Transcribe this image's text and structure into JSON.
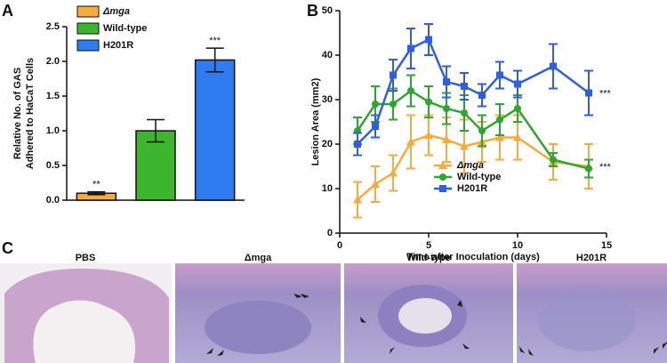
{
  "panels": [
    "A",
    "B",
    "C"
  ],
  "chart_data": [
    {
      "type": "bar",
      "ylabel": [
        "Relative No. of GAS",
        "Adhered to HaCaT Cells"
      ],
      "categories": [
        "Δmga",
        "Wild-type",
        "H201R"
      ],
      "values": [
        0.1,
        1.0,
        2.02
      ],
      "errors": [
        0.02,
        0.16,
        0.17
      ],
      "value_annotations": [
        "**",
        null,
        "***"
      ],
      "colors": [
        "#f6ac3c",
        "#3db52f",
        "#2f7cf2"
      ],
      "ylim": [
        0,
        2.5
      ],
      "yticks": [
        {
          "value": 0,
          "label": "0.0"
        },
        0.5,
        {
          "value": 1,
          "label": "1.0"
        },
        1.5,
        {
          "value": 2,
          "label": "2.0"
        },
        2.5
      ],
      "legend": "upper left"
    },
    {
      "type": "line",
      "xlabel": "Time after Inoculation (days)",
      "ylabel": "Lesion Area (mm2)",
      "x": [
        1,
        2,
        3,
        4,
        5,
        6,
        7,
        8,
        9,
        10,
        12,
        14
      ],
      "series": [
        {
          "name": "Δmga",
          "color": "#f6ac3c",
          "marker": "triangle",
          "annotation": "***",
          "values": [
            7.5,
            11,
            13.5,
            20.5,
            22,
            21,
            19.5,
            20.5,
            21.5,
            21.5,
            16,
            15
          ],
          "errors": [
            4,
            4,
            4,
            6,
            4.5,
            5,
            6,
            4.5,
            5,
            5,
            4,
            5
          ]
        },
        {
          "name": "Wild-type",
          "color": "#2fa62f",
          "marker": "circle",
          "values": [
            23,
            29,
            29,
            32,
            29.5,
            28,
            27,
            23,
            25.5,
            28,
            16.5,
            14.5
          ],
          "errors": [
            3,
            4,
            3.5,
            3.5,
            3.5,
            3.5,
            4,
            3.5,
            3.5,
            3,
            1.5,
            2
          ]
        },
        {
          "name": "H201R",
          "color": "#2f5fe0",
          "marker": "square",
          "annotation": "***",
          "values": [
            20,
            24,
            35.5,
            41.5,
            43.5,
            34,
            33,
            31,
            35.5,
            33.5,
            37.5,
            31.5
          ],
          "errors": [
            2.5,
            2.5,
            3.5,
            4.5,
            3.5,
            3.5,
            3,
            2.5,
            3,
            3,
            5,
            5
          ]
        }
      ],
      "xlim": [
        0,
        15
      ],
      "xticks": [
        0,
        5,
        10,
        15
      ],
      "ylim": [
        0,
        50
      ],
      "yticks": [
        0,
        10,
        20,
        30,
        40,
        50
      ],
      "legend": "lower center"
    }
  ],
  "histology": [
    "PBS",
    "Δmga",
    "Wild-type",
    "H201R"
  ]
}
